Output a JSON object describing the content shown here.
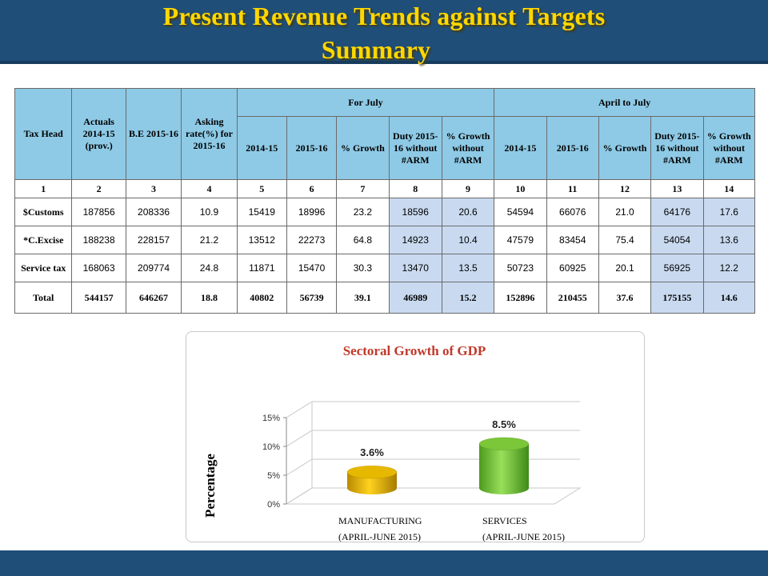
{
  "page": {
    "title_line1": "Present Revenue Trends against Targets",
    "title_line2": "Summary"
  },
  "table": {
    "header": {
      "tax_head": "Tax Head",
      "actuals": "Actuals 2014-15 (prov.)",
      "be": "B.E 2015-16",
      "asking": "Asking rate(%) for 2015-16",
      "for_july": "For July",
      "april_to_july": "April to July",
      "sub": [
        "2014-15",
        "2015-16",
        "% Growth",
        "Duty 2015-16 without #ARM",
        "% Growth without #ARM"
      ]
    },
    "index_row": [
      "1",
      "2",
      "3",
      "4",
      "5",
      "6",
      "7",
      "8",
      "9",
      "10",
      "11",
      "12",
      "13",
      "14"
    ],
    "rows": [
      {
        "label": "$Customs",
        "values": [
          "187856",
          "208336",
          "10.9",
          "15419",
          "18996",
          "23.2",
          "18596",
          "20.6",
          "54594",
          "66076",
          "21.0",
          "64176",
          "17.6"
        ]
      },
      {
        "label": "*C.Excise",
        "values": [
          "188238",
          "228157",
          "21.2",
          "13512",
          "22273",
          "64.8",
          "14923",
          "10.4",
          "47579",
          "83454",
          "75.4",
          "54054",
          "13.6"
        ]
      },
      {
        "label": "Service tax",
        "values": [
          "168063",
          "209774",
          "24.8",
          "11871",
          "15470",
          "30.3",
          "13470",
          "13.5",
          "50723",
          "60925",
          "20.1",
          "56925",
          "12.2"
        ]
      },
      {
        "label": "Total",
        "values": [
          "544157",
          "646267",
          "18.8",
          "40802",
          "56739",
          "39.1",
          "46989",
          "15.2",
          "152896",
          "210455",
          "37.6",
          "175155",
          "14.6"
        ]
      }
    ]
  },
  "chart_data": {
    "type": "bar",
    "title": "Sectoral Growth of GDP",
    "ylabel": "Percentage",
    "xlabel": "",
    "categories": [
      "MANUFACTURING (APRIL-JUNE 2015)",
      "SERVICES (APRIL-JUNE 2015)"
    ],
    "category_lines": [
      [
        "MANUFACTURING",
        "(APRIL-JUNE 2015)"
      ],
      [
        "SERVICES",
        "(APRIL-JUNE 2015)"
      ]
    ],
    "values": [
      3.6,
      8.5
    ],
    "data_labels": [
      "3.6%",
      "8.5%"
    ],
    "ylim": [
      0,
      15
    ],
    "yticks": [
      "0%",
      "5%",
      "10%",
      "15%"
    ],
    "grid": true,
    "colors": {
      "bar1": "#e6b800",
      "bar2": "#7cc63a",
      "title": "#c0392b"
    }
  }
}
